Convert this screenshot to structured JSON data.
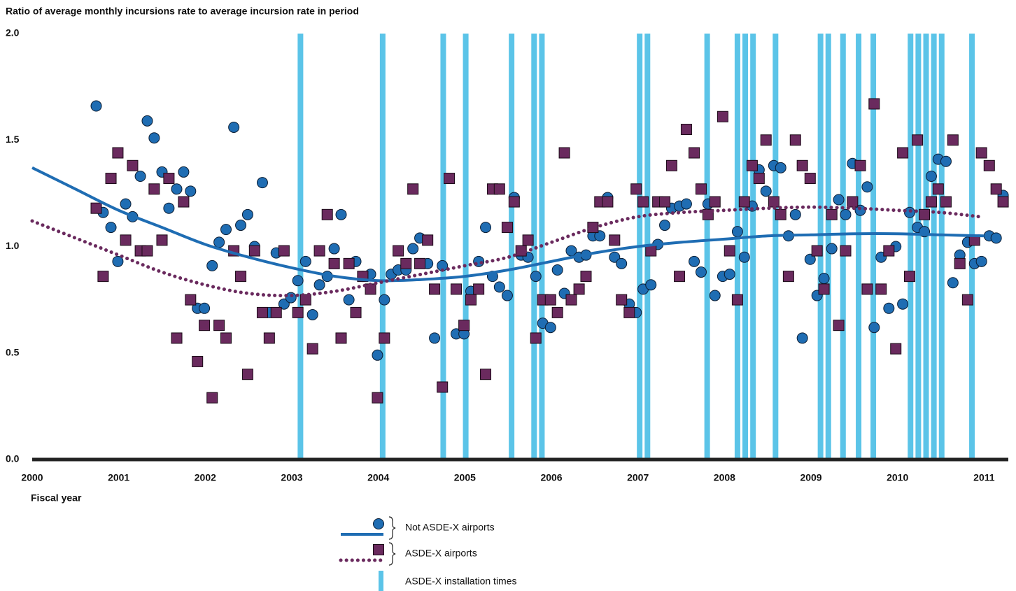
{
  "chart_data": {
    "type": "scatter",
    "title": "Ratio of average monthly incursions rate to average incursion rate in period",
    "x_label": "Fiscal year",
    "xlim": [
      2000,
      2011.28
    ],
    "ylim": [
      0,
      2.0
    ],
    "xticks": [
      2000,
      2001,
      2002,
      2003,
      2004,
      2005,
      2006,
      2007,
      2008,
      2009,
      2010,
      2011
    ],
    "yticks": [
      {
        "value": 0,
        "label": "0.0"
      },
      0.5,
      {
        "value": 1,
        "label": "1.0"
      },
      1.5,
      {
        "value": 2,
        "label": "2.0"
      }
    ],
    "grid": false,
    "installations": {
      "name": "ASDE-X installation times",
      "color": "#5bc4e8",
      "x": [
        2003.1,
        2004.05,
        2004.75,
        2005.01,
        2005.54,
        2005.8,
        2005.89,
        2007.02,
        2007.11,
        2007.8,
        2008.15,
        2008.24,
        2008.33,
        2008.59,
        2009.11,
        2009.2,
        2009.37,
        2009.55,
        2009.72,
        2010.15,
        2010.24,
        2010.33,
        2010.42,
        2010.51,
        2010.86
      ]
    },
    "series": [
      {
        "name": "Not ASDE-X airports",
        "color": "#1f6db3",
        "marker": "circle",
        "line_style": "solid",
        "x": [
          2000.74,
          2000.82,
          2000.91,
          2000.99,
          2001.08,
          2001.16,
          2001.25,
          2001.33,
          2001.41,
          2001.5,
          2001.58,
          2001.67,
          2001.75,
          2001.83,
          2001.91,
          2001.99,
          2002.08,
          2002.16,
          2002.24,
          2002.33,
          2002.41,
          2002.49,
          2002.57,
          2002.66,
          2002.74,
          2002.82,
          2002.91,
          2002.99,
          2003.07,
          2003.16,
          2003.24,
          2003.32,
          2003.41,
          2003.49,
          2003.57,
          2003.66,
          2003.74,
          2003.82,
          2003.91,
          2003.99,
          2004.07,
          2004.15,
          2004.23,
          2004.32,
          2004.4,
          2004.48,
          2004.57,
          2004.65,
          2004.74,
          2004.9,
          2004.99,
          2005.07,
          2005.16,
          2005.24,
          2005.32,
          2005.4,
          2005.49,
          2005.57,
          2005.65,
          2005.73,
          2005.82,
          2005.9,
          2005.99,
          2006.07,
          2006.15,
          2006.23,
          2006.32,
          2006.4,
          2006.48,
          2006.56,
          2006.65,
          2006.73,
          2006.81,
          2006.9,
          2006.98,
          2007.06,
          2007.15,
          2007.23,
          2007.31,
          2007.39,
          2007.48,
          2007.56,
          2007.65,
          2007.73,
          2007.81,
          2007.89,
          2007.98,
          2008.06,
          2008.15,
          2008.23,
          2008.32,
          2008.4,
          2008.48,
          2008.57,
          2008.65,
          2008.74,
          2008.82,
          2008.9,
          2008.99,
          2009.07,
          2009.15,
          2009.24,
          2009.32,
          2009.4,
          2009.48,
          2009.57,
          2009.65,
          2009.73,
          2009.81,
          2009.9,
          2009.98,
          2010.06,
          2010.14,
          2010.23,
          2010.31,
          2010.39,
          2010.47,
          2010.56,
          2010.64,
          2010.72,
          2010.81,
          2010.89,
          2010.97,
          2011.06,
          2011.14,
          2011.22
        ],
        "values": [
          1.66,
          1.16,
          1.09,
          0.93,
          1.2,
          1.14,
          1.33,
          1.59,
          1.51,
          1.35,
          1.18,
          1.27,
          1.35,
          1.26,
          0.71,
          0.71,
          0.91,
          1.02,
          1.08,
          1.56,
          1.1,
          1.15,
          1.0,
          1.3,
          0.69,
          0.97,
          0.73,
          0.76,
          0.84,
          0.93,
          0.68,
          0.82,
          0.86,
          0.99,
          1.15,
          0.75,
          0.93,
          0.86,
          0.87,
          0.49,
          0.75,
          0.87,
          0.89,
          0.89,
          0.99,
          1.04,
          0.92,
          0.57,
          0.91,
          0.59,
          0.59,
          0.79,
          0.93,
          1.09,
          0.86,
          0.81,
          0.77,
          1.23,
          0.96,
          0.95,
          0.86,
          0.64,
          0.62,
          0.89,
          0.78,
          0.98,
          0.95,
          0.96,
          1.05,
          1.05,
          1.23,
          0.95,
          0.92,
          0.73,
          0.69,
          0.8,
          0.82,
          1.01,
          1.1,
          1.18,
          1.19,
          1.2,
          0.93,
          0.88,
          1.2,
          0.77,
          0.86,
          0.87,
          1.07,
          0.95,
          1.19,
          1.36,
          1.26,
          1.38,
          1.37,
          1.05,
          1.15,
          0.57,
          0.94,
          0.77,
          0.85,
          0.99,
          1.22,
          1.15,
          1.39,
          1.17,
          1.28,
          0.62,
          0.95,
          0.71,
          1.0,
          0.73,
          1.16,
          1.09,
          1.07,
          1.33,
          1.41,
          1.4,
          0.83,
          0.96,
          1.02,
          0.92,
          0.93,
          1.05,
          1.04,
          1.24
        ],
        "trend": {
          "x": [
            2000,
            2000.5,
            2001,
            2001.5,
            2002,
            2002.5,
            2003,
            2003.5,
            2004,
            2004.5,
            2005,
            2005.5,
            2006,
            2006.5,
            2007,
            2007.5,
            2008,
            2008.5,
            2009,
            2009.5,
            2010,
            2010.5,
            2011
          ],
          "values": [
            1.37,
            1.27,
            1.17,
            1.09,
            1.01,
            0.95,
            0.9,
            0.86,
            0.84,
            0.845,
            0.86,
            0.89,
            0.93,
            0.97,
            1.0,
            1.02,
            1.035,
            1.05,
            1.055,
            1.06,
            1.06,
            1.055,
            1.05
          ]
        }
      },
      {
        "name": "ASDE-X airports",
        "color": "#6a2a5e",
        "marker": "square",
        "line_style": "dotted",
        "x": [
          2000.74,
          2000.82,
          2000.91,
          2000.99,
          2001.08,
          2001.16,
          2001.25,
          2001.33,
          2001.41,
          2001.5,
          2001.58,
          2001.67,
          2001.75,
          2001.83,
          2001.91,
          2001.99,
          2002.08,
          2002.16,
          2002.24,
          2002.33,
          2002.41,
          2002.49,
          2002.57,
          2002.66,
          2002.74,
          2002.82,
          2002.91,
          2003.07,
          2003.16,
          2003.24,
          2003.32,
          2003.41,
          2003.49,
          2003.57,
          2003.66,
          2003.74,
          2003.82,
          2003.91,
          2003.99,
          2004.07,
          2004.23,
          2004.32,
          2004.4,
          2004.48,
          2004.57,
          2004.65,
          2004.74,
          2004.82,
          2004.9,
          2004.99,
          2005.07,
          2005.16,
          2005.24,
          2005.32,
          2005.4,
          2005.49,
          2005.57,
          2005.65,
          2005.73,
          2005.82,
          2005.9,
          2005.99,
          2006.07,
          2006.15,
          2006.23,
          2006.32,
          2006.4,
          2006.48,
          2006.56,
          2006.65,
          2006.73,
          2006.81,
          2006.9,
          2006.98,
          2007.06,
          2007.15,
          2007.23,
          2007.31,
          2007.39,
          2007.48,
          2007.56,
          2007.65,
          2007.73,
          2007.81,
          2007.89,
          2007.98,
          2008.06,
          2008.15,
          2008.23,
          2008.32,
          2008.4,
          2008.48,
          2008.57,
          2008.65,
          2008.74,
          2008.82,
          2008.9,
          2008.99,
          2009.07,
          2009.15,
          2009.24,
          2009.32,
          2009.4,
          2009.48,
          2009.57,
          2009.65,
          2009.73,
          2009.81,
          2009.9,
          2009.98,
          2010.06,
          2010.14,
          2010.23,
          2010.31,
          2010.39,
          2010.47,
          2010.56,
          2010.64,
          2010.72,
          2010.81,
          2010.89,
          2010.97,
          2011.06,
          2011.14,
          2011.22
        ],
        "values": [
          1.18,
          0.86,
          1.32,
          1.44,
          1.03,
          1.38,
          0.98,
          0.98,
          1.27,
          1.03,
          1.32,
          0.57,
          1.21,
          0.75,
          0.46,
          0.63,
          0.29,
          0.63,
          0.57,
          0.98,
          0.86,
          0.4,
          0.98,
          0.69,
          0.57,
          0.69,
          0.98,
          0.69,
          0.75,
          0.52,
          0.98,
          1.15,
          0.92,
          0.57,
          0.92,
          0.69,
          0.86,
          0.8,
          0.29,
          0.57,
          0.98,
          0.92,
          1.27,
          0.92,
          1.03,
          0.8,
          0.34,
          1.32,
          0.8,
          0.63,
          0.75,
          0.8,
          0.4,
          1.27,
          1.27,
          1.09,
          1.21,
          0.98,
          1.03,
          0.57,
          0.75,
          0.75,
          0.69,
          1.44,
          0.75,
          0.8,
          0.86,
          1.09,
          1.21,
          1.21,
          1.03,
          0.75,
          0.69,
          1.27,
          1.21,
          0.98,
          1.21,
          1.21,
          1.38,
          0.86,
          1.55,
          1.44,
          1.27,
          1.15,
          1.21,
          1.61,
          0.98,
          0.75,
          1.21,
          1.38,
          1.32,
          1.5,
          1.21,
          1.15,
          0.86,
          1.5,
          1.38,
          1.32,
          0.98,
          0.8,
          1.15,
          0.63,
          0.98,
          1.21,
          1.38,
          0.8,
          1.67,
          0.8,
          0.98,
          0.52,
          1.44,
          0.86,
          1.5,
          1.15,
          1.21,
          1.27,
          1.21,
          1.5,
          0.92,
          0.75,
          1.03,
          1.44,
          1.38,
          1.27,
          1.21
        ],
        "trend": {
          "x": [
            2000,
            2000.5,
            2001,
            2001.5,
            2002,
            2002.5,
            2003,
            2003.5,
            2004,
            2004.5,
            2005,
            2005.5,
            2006,
            2006.5,
            2007,
            2007.5,
            2008,
            2008.5,
            2009,
            2009.5,
            2010,
            2010.5,
            2010.95
          ],
          "values": [
            1.12,
            1.04,
            0.96,
            0.88,
            0.82,
            0.78,
            0.77,
            0.79,
            0.83,
            0.87,
            0.91,
            0.95,
            1.02,
            1.09,
            1.14,
            1.16,
            1.17,
            1.18,
            1.185,
            1.18,
            1.17,
            1.16,
            1.14
          ]
        }
      }
    ]
  }
}
